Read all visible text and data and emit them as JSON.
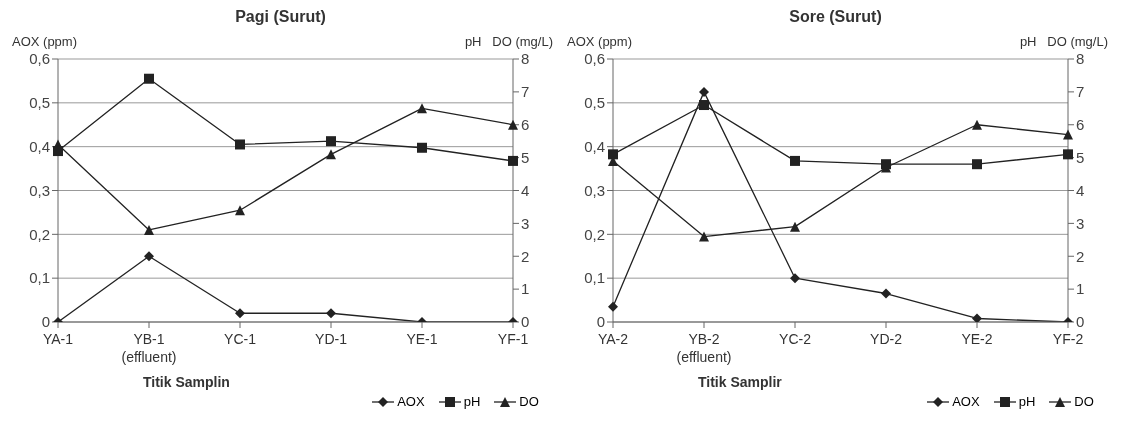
{
  "chart_data": [
    {
      "type": "line",
      "title": "Pagi (Surut)",
      "xlabel": "Titik Samplin",
      "ylabel": "AOX (ppm)",
      "y2label": "pH   DO (mg/L)",
      "categories": [
        "YA-1",
        "YB-1 (effluent)",
        "YC-1",
        "YD-1",
        "YE-1",
        "YF-1"
      ],
      "series": [
        {
          "name": "AOX",
          "color": "#222222",
          "marker": "diamond",
          "values": [
            0,
            0.15,
            0.02,
            0.02,
            0,
            0
          ]
        },
        {
          "name": "pH",
          "color": "#222222",
          "marker": "square",
          "axis": "y2",
          "values": [
            5.2,
            7.4,
            5.4,
            5.5,
            5.3,
            4.9
          ]
        },
        {
          "name": "DO",
          "color": "#222222",
          "marker": "triangle",
          "axis": "y2",
          "values": [
            5.4,
            2.8,
            3.4,
            5.1,
            6.5,
            6.0
          ]
        }
      ],
      "ylim": [
        0,
        0.6
      ],
      "yticks": [
        0,
        {
          "value": 0.1,
          "label": "0,1"
        },
        {
          "value": 0.2,
          "label": "0,2"
        },
        {
          "value": 0.3,
          "label": "0,3"
        },
        {
          "value": 0.4,
          "label": "0,4"
        },
        {
          "value": 0.5,
          "label": "0,5"
        },
        {
          "value": 0.6,
          "label": "0,6"
        }
      ],
      "y2lim": [
        0,
        8
      ],
      "y2ticks": [
        0,
        1,
        2,
        3,
        4,
        5,
        6,
        7,
        8
      ],
      "grid": "y",
      "legend": "bottom",
      "line_style": "solid"
    },
    {
      "type": "line",
      "title": "Sore (Surut)",
      "xlabel": "Titik Samplir",
      "ylabel": "AOX (ppm)",
      "y2label": "pH   DO (mg/L)",
      "categories": [
        "YA-2",
        "YB-2 (effluent)",
        "YC-2",
        "YD-2",
        "YE-2",
        "YF-2"
      ],
      "series": [
        {
          "name": "AOX",
          "color": "#222222",
          "marker": "diamond",
          "values": [
            0.035,
            0.525,
            0.1,
            0.065,
            0.008,
            0
          ]
        },
        {
          "name": "pH",
          "color": "#222222",
          "marker": "square",
          "axis": "y2",
          "values": [
            5.1,
            6.6,
            4.9,
            4.8,
            4.8,
            5.1
          ]
        },
        {
          "name": "DO",
          "color": "#222222",
          "marker": "triangle",
          "axis": "y2",
          "values": [
            4.9,
            2.6,
            2.9,
            4.7,
            6.0,
            5.7
          ]
        }
      ],
      "ylim": [
        0,
        0.6
      ],
      "yticks": [
        0,
        {
          "value": 0.1,
          "label": "0,1"
        },
        {
          "value": 0.2,
          "label": "0,2"
        },
        {
          "value": 0.3,
          "label": "0,3"
        },
        {
          "value": 0.4,
          "label": "0,4"
        },
        {
          "value": 0.5,
          "label": "0,5"
        },
        {
          "value": 0.6,
          "label": "0,6"
        }
      ],
      "y2lim": [
        0,
        8
      ],
      "y2ticks": [
        0,
        1,
        2,
        3,
        4,
        5,
        6,
        7,
        8
      ],
      "grid": "y",
      "legend": "bottom",
      "line_style": "solid"
    }
  ]
}
